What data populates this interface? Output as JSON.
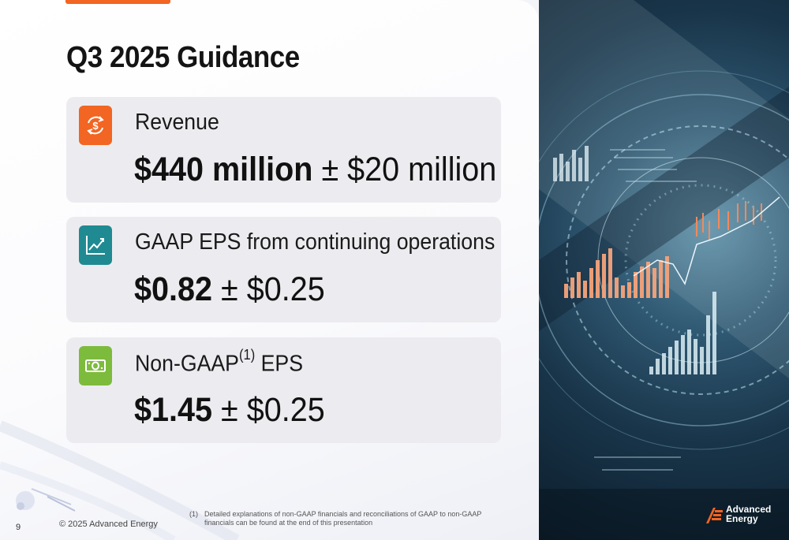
{
  "slide": {
    "title": "Q3 2025 Guidance",
    "page_number": "9",
    "copyright": "© 2025 Advanced Energy",
    "footnote": {
      "marker": "(1)",
      "text": "Detailed explanations of non-GAAP financials and reconciliations of GAAP to non-GAAP financials can be found at the end of this presentation"
    }
  },
  "cards": [
    {
      "label": "Revenue",
      "value_bold": "$440 million",
      "value_rest": " ± $20 million",
      "icon": "dollar-cycle-icon",
      "icon_color": "#f26522"
    },
    {
      "label": "GAAP EPS from continuing operations",
      "value_bold": "$0.82",
      "value_rest": " ± $0.25",
      "icon": "line-chart-icon",
      "icon_color": "#1f8a92"
    },
    {
      "label": "Non-GAAP",
      "label_sup": "(1)",
      "label_after": " EPS",
      "value_bold": "$1.45",
      "value_rest": " ± $0.25",
      "icon": "banknote-icon",
      "icon_color": "#7dbb3d"
    }
  ],
  "logo": {
    "line1": "Advanced",
    "line2": "Energy",
    "color": "#f26522"
  }
}
